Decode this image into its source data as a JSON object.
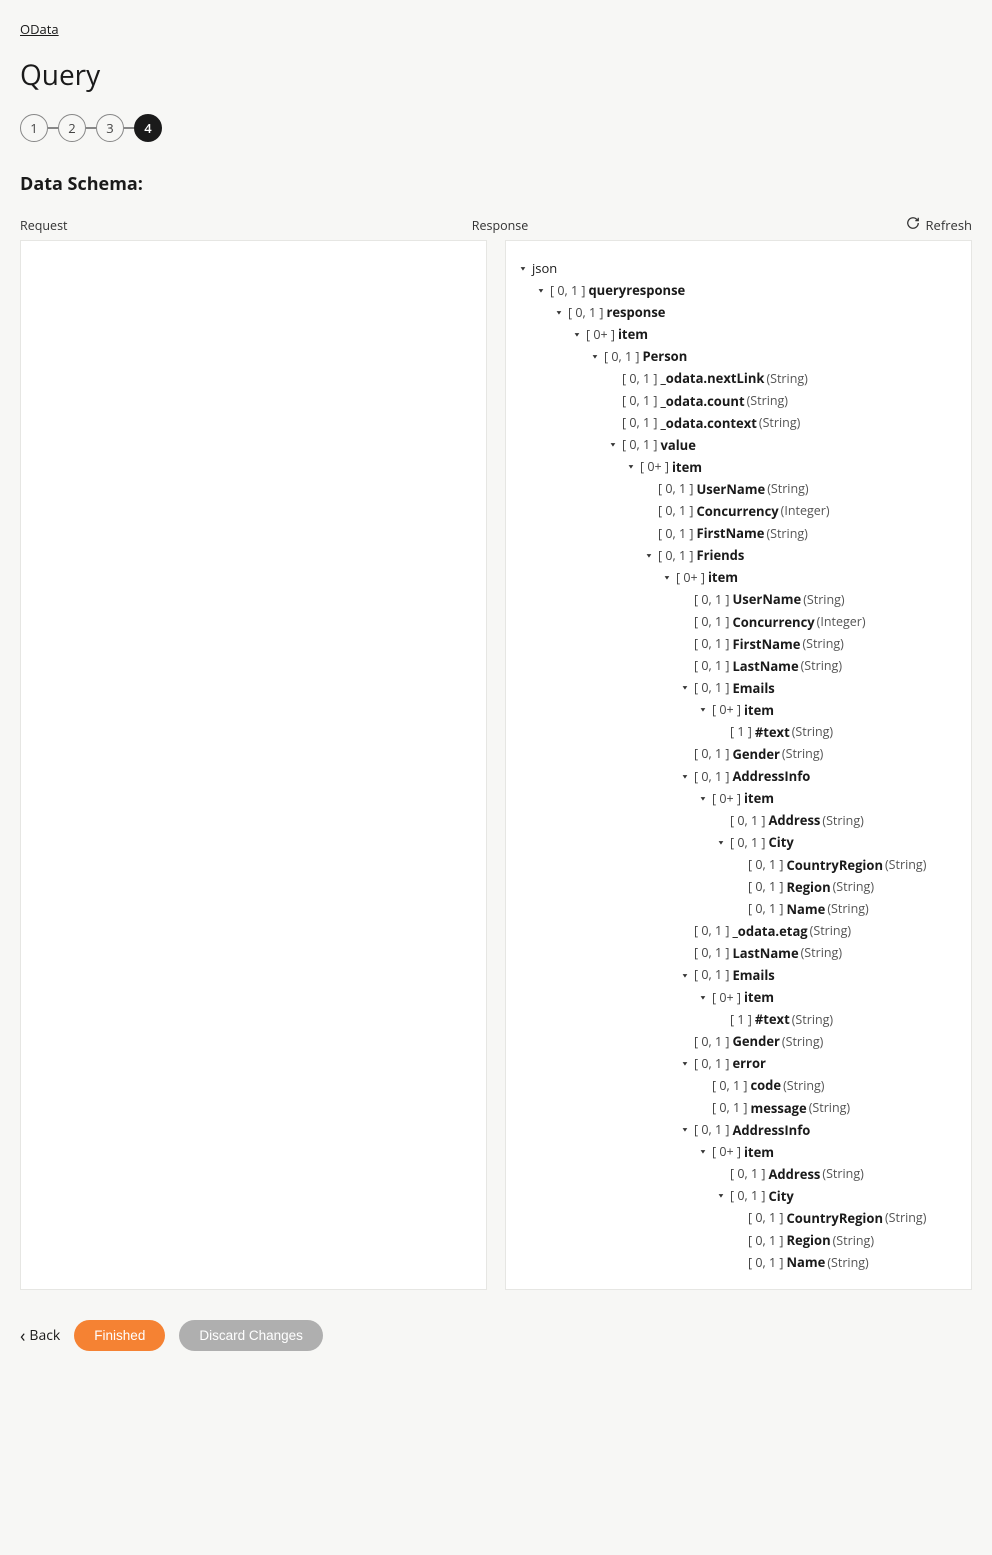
{
  "breadcrumb": "OData",
  "pageTitle": "Query",
  "steps": [
    "1",
    "2",
    "3",
    "4"
  ],
  "activeStep": 3,
  "sectionTitle": "Data Schema:",
  "columns": {
    "request": "Request",
    "response": "Response"
  },
  "refreshLabel": "Refresh",
  "footer": {
    "back": "Back",
    "finished": "Finished",
    "discard": "Discard Changes"
  },
  "tree": {
    "name": "json",
    "children": [
      {
        "card": "[ 0, 1 ]",
        "name": "queryresponse",
        "children": [
          {
            "card": "[ 0, 1 ]",
            "name": "response",
            "children": [
              {
                "card": "[ 0+ ]",
                "name": "item",
                "children": [
                  {
                    "card": "[ 0, 1 ]",
                    "name": "Person",
                    "children": [
                      {
                        "card": "[ 0, 1 ]",
                        "name": "_odata.nextLink",
                        "type": "(String)"
                      },
                      {
                        "card": "[ 0, 1 ]",
                        "name": "_odata.count",
                        "type": "(String)"
                      },
                      {
                        "card": "[ 0, 1 ]",
                        "name": "_odata.context",
                        "type": "(String)"
                      },
                      {
                        "card": "[ 0, 1 ]",
                        "name": "value",
                        "children": [
                          {
                            "card": "[ 0+ ]",
                            "name": "item",
                            "children": [
                              {
                                "card": "[ 0, 1 ]",
                                "name": "UserName",
                                "type": "(String)"
                              },
                              {
                                "card": "[ 0, 1 ]",
                                "name": "Concurrency",
                                "type": "(Integer)"
                              },
                              {
                                "card": "[ 0, 1 ]",
                                "name": "FirstName",
                                "type": "(String)"
                              },
                              {
                                "card": "[ 0, 1 ]",
                                "name": "Friends",
                                "children": [
                                  {
                                    "card": "[ 0+ ]",
                                    "name": "item",
                                    "children": [
                                      {
                                        "card": "[ 0, 1 ]",
                                        "name": "UserName",
                                        "type": "(String)"
                                      },
                                      {
                                        "card": "[ 0, 1 ]",
                                        "name": "Concurrency",
                                        "type": "(Integer)"
                                      },
                                      {
                                        "card": "[ 0, 1 ]",
                                        "name": "FirstName",
                                        "type": "(String)"
                                      },
                                      {
                                        "card": "[ 0, 1 ]",
                                        "name": "LastName",
                                        "type": "(String)"
                                      },
                                      {
                                        "card": "[ 0, 1 ]",
                                        "name": "Emails",
                                        "children": [
                                          {
                                            "card": "[ 0+ ]",
                                            "name": "item",
                                            "children": [
                                              {
                                                "card": "[ 1 ]",
                                                "name": "#text",
                                                "type": "(String)"
                                              }
                                            ]
                                          }
                                        ]
                                      },
                                      {
                                        "card": "[ 0, 1 ]",
                                        "name": "Gender",
                                        "type": "(String)"
                                      },
                                      {
                                        "card": "[ 0, 1 ]",
                                        "name": "AddressInfo",
                                        "children": [
                                          {
                                            "card": "[ 0+ ]",
                                            "name": "item",
                                            "children": [
                                              {
                                                "card": "[ 0, 1 ]",
                                                "name": "Address",
                                                "type": "(String)"
                                              },
                                              {
                                                "card": "[ 0, 1 ]",
                                                "name": "City",
                                                "children": [
                                                  {
                                                    "card": "[ 0, 1 ]",
                                                    "name": "CountryRegion",
                                                    "type": "(String)"
                                                  },
                                                  {
                                                    "card": "[ 0, 1 ]",
                                                    "name": "Region",
                                                    "type": "(String)"
                                                  },
                                                  {
                                                    "card": "[ 0, 1 ]",
                                                    "name": "Name",
                                                    "type": "(String)"
                                                  }
                                                ]
                                              }
                                            ]
                                          }
                                        ]
                                      },
                                      {
                                        "card": "[ 0, 1 ]",
                                        "name": "_odata.etag",
                                        "type": "(String)"
                                      },
                                      {
                                        "card": "[ 0, 1 ]",
                                        "name": "LastName",
                                        "type": "(String)"
                                      },
                                      {
                                        "card": "[ 0, 1 ]",
                                        "name": "Emails",
                                        "children": [
                                          {
                                            "card": "[ 0+ ]",
                                            "name": "item",
                                            "children": [
                                              {
                                                "card": "[ 1 ]",
                                                "name": "#text",
                                                "type": "(String)"
                                              }
                                            ]
                                          }
                                        ]
                                      },
                                      {
                                        "card": "[ 0, 1 ]",
                                        "name": "Gender",
                                        "type": "(String)"
                                      },
                                      {
                                        "card": "[ 0, 1 ]",
                                        "name": "error",
                                        "children": [
                                          {
                                            "card": "[ 0, 1 ]",
                                            "name": "code",
                                            "type": "(String)"
                                          },
                                          {
                                            "card": "[ 0, 1 ]",
                                            "name": "message",
                                            "type": "(String)"
                                          }
                                        ]
                                      },
                                      {
                                        "card": "[ 0, 1 ]",
                                        "name": "AddressInfo",
                                        "children": [
                                          {
                                            "card": "[ 0+ ]",
                                            "name": "item",
                                            "children": [
                                              {
                                                "card": "[ 0, 1 ]",
                                                "name": "Address",
                                                "type": "(String)"
                                              },
                                              {
                                                "card": "[ 0, 1 ]",
                                                "name": "City",
                                                "children": [
                                                  {
                                                    "card": "[ 0, 1 ]",
                                                    "name": "CountryRegion",
                                                    "type": "(String)"
                                                  },
                                                  {
                                                    "card": "[ 0, 1 ]",
                                                    "name": "Region",
                                                    "type": "(String)"
                                                  },
                                                  {
                                                    "card": "[ 0, 1 ]",
                                                    "name": "Name",
                                                    "type": "(String)"
                                                  }
                                                ]
                                              }
                                            ]
                                          }
                                        ]
                                      }
                                    ]
                                  }
                                ]
                              }
                            ]
                          }
                        ]
                      }
                    ]
                  }
                ]
              }
            ]
          }
        ]
      }
    ]
  }
}
